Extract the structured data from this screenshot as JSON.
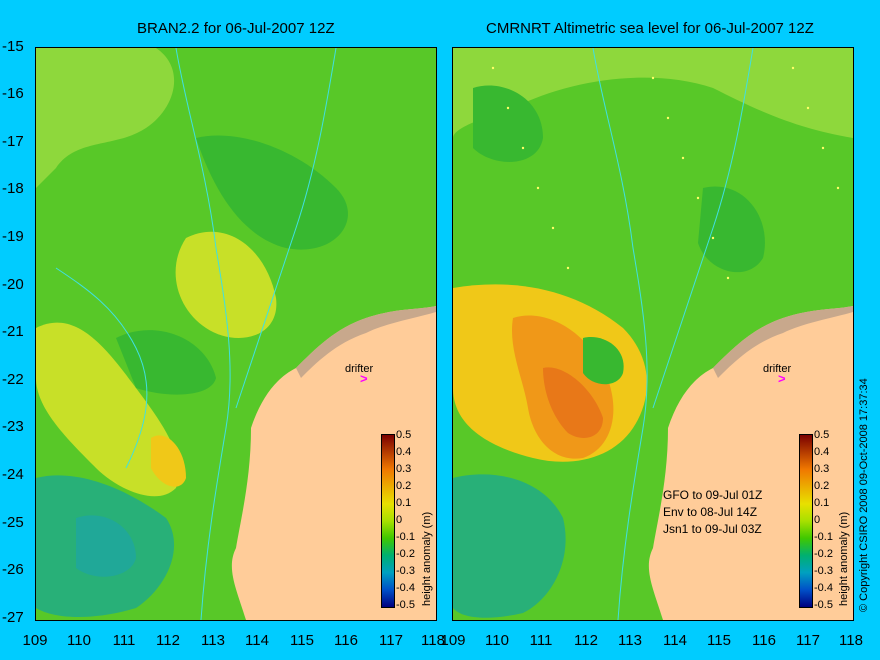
{
  "panels": [
    {
      "title": "BRAN2.2 for 06-Jul-2007 12Z"
    },
    {
      "title": "CMRNRT Altimetric sea level  for 06-Jul-2007 12Z"
    }
  ],
  "y_ticks": [
    "-15",
    "-16",
    "-17",
    "-18",
    "-19",
    "-20",
    "-21",
    "-22",
    "-23",
    "-24",
    "-25",
    "-26",
    "-27"
  ],
  "x_ticks_left": [
    "109",
    "110",
    "111",
    "112",
    "113",
    "114",
    "115",
    "116",
    "117",
    "118"
  ],
  "x_ticks_right": [
    "109",
    "110",
    "111",
    "112",
    "113",
    "114",
    "115",
    "116",
    "117",
    "118"
  ],
  "colorbar": {
    "title": "height anomaly (m)",
    "labels": [
      "0.5",
      "0.4",
      "0.3",
      "0.2",
      "0.1",
      "0",
      "-0.1",
      "-0.2",
      "-0.3",
      "-0.4",
      "-0.5"
    ],
    "colors": [
      "#7a0000",
      "#c84800",
      "#f07800",
      "#f0b000",
      "#e8e000",
      "#a8e000",
      "#40c800",
      "#00b070",
      "#00a0c0",
      "#0050c8",
      "#000080"
    ]
  },
  "drifter_label": "drifter",
  "drifter_marker": ">",
  "legend": [
    "GFO to 09-Jul 01Z",
    "Env to 08-Jul 14Z",
    "Jsn1 to 09-Jul 03Z"
  ],
  "copyright": "© Copyright CSIRO 2008   09-Oct-2008 17:37:34",
  "colors": {
    "background": "#00ccff",
    "land": "#ffcc99",
    "coast_shelf": "#c8a88c",
    "contours": "#40e0e0",
    "drifter": "#ff00ff"
  }
}
